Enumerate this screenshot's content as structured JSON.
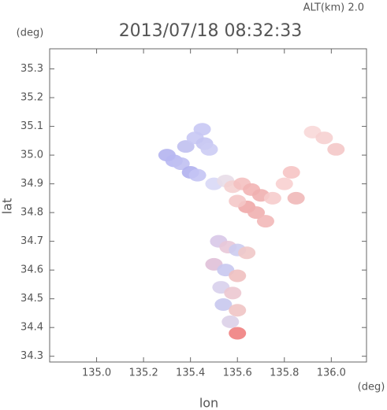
{
  "chart_data": {
    "type": "scatter",
    "title": "2013/07/18 08:32:33",
    "annotation": "ALT(km) 2.0",
    "y_unit": "(deg)",
    "x_unit": "(deg)",
    "x_label": "lon",
    "y_label": "lat",
    "xlim": [
      134.8,
      136.15
    ],
    "ylim": [
      34.28,
      35.37
    ],
    "xticks": [
      {
        "value": 135,
        "label": "135.0"
      },
      135.2,
      135.4,
      135.6,
      135.8,
      {
        "value": 136,
        "label": "136.0"
      }
    ],
    "yticks": [
      34.3,
      34.4,
      34.5,
      34.6,
      34.7,
      34.8,
      34.9,
      {
        "value": 35,
        "label": "35.0"
      },
      35.1,
      35.2,
      35.3
    ],
    "x": [
      135.3,
      135.33,
      135.36,
      135.4,
      135.43,
      135.38,
      135.42,
      135.46,
      135.48,
      135.45,
      135.5,
      135.55,
      135.58,
      135.62,
      135.66,
      135.7,
      135.64,
      135.68,
      135.72,
      135.6,
      135.75,
      135.8,
      135.83,
      135.92,
      135.97,
      136.02,
      135.85,
      135.52,
      135.56,
      135.6,
      135.64,
      135.5,
      135.55,
      135.6,
      135.53,
      135.58,
      135.54,
      135.6,
      135.57,
      135.6
    ],
    "y": [
      35.0,
      34.98,
      34.97,
      34.94,
      34.93,
      35.03,
      35.06,
      35.04,
      35.02,
      35.09,
      34.9,
      34.91,
      34.89,
      34.9,
      34.88,
      34.86,
      34.82,
      34.8,
      34.77,
      34.84,
      34.85,
      34.9,
      34.94,
      35.08,
      35.06,
      35.02,
      34.85,
      34.7,
      34.68,
      34.67,
      34.66,
      34.62,
      34.6,
      34.58,
      34.54,
      34.52,
      34.48,
      34.46,
      34.42,
      34.38
    ],
    "colors": [
      "#b4b4f0",
      "#b8b8f2",
      "#c0c0f2",
      "#b0b0ee",
      "#c4c4f4",
      "#c0c0f0",
      "#c8c8f4",
      "#c4c4f2",
      "#ccccf4",
      "#c8c8f4",
      "#d8d8f6",
      "#e8dde8",
      "#f4d0d0",
      "#f4c0c0",
      "#f2b4b4",
      "#f0b0b0",
      "#f0a8a8",
      "#f0b0b0",
      "#f2b8b8",
      "#f4c8c8",
      "#f6cccc",
      "#f8d0d0",
      "#f6c4c4",
      "#f8d8d8",
      "#f6d0d0",
      "#f4c8c8",
      "#f0b8b8",
      "#d8c8e8",
      "#e8c8d8",
      "#ccccf0",
      "#f0c8c8",
      "#e0c0d8",
      "#c8c8f0",
      "#f0c0c0",
      "#d8d0ec",
      "#ecc8d0",
      "#c8c8ee",
      "#f0c4c4",
      "#dcd0e8",
      "#f08080"
    ]
  }
}
